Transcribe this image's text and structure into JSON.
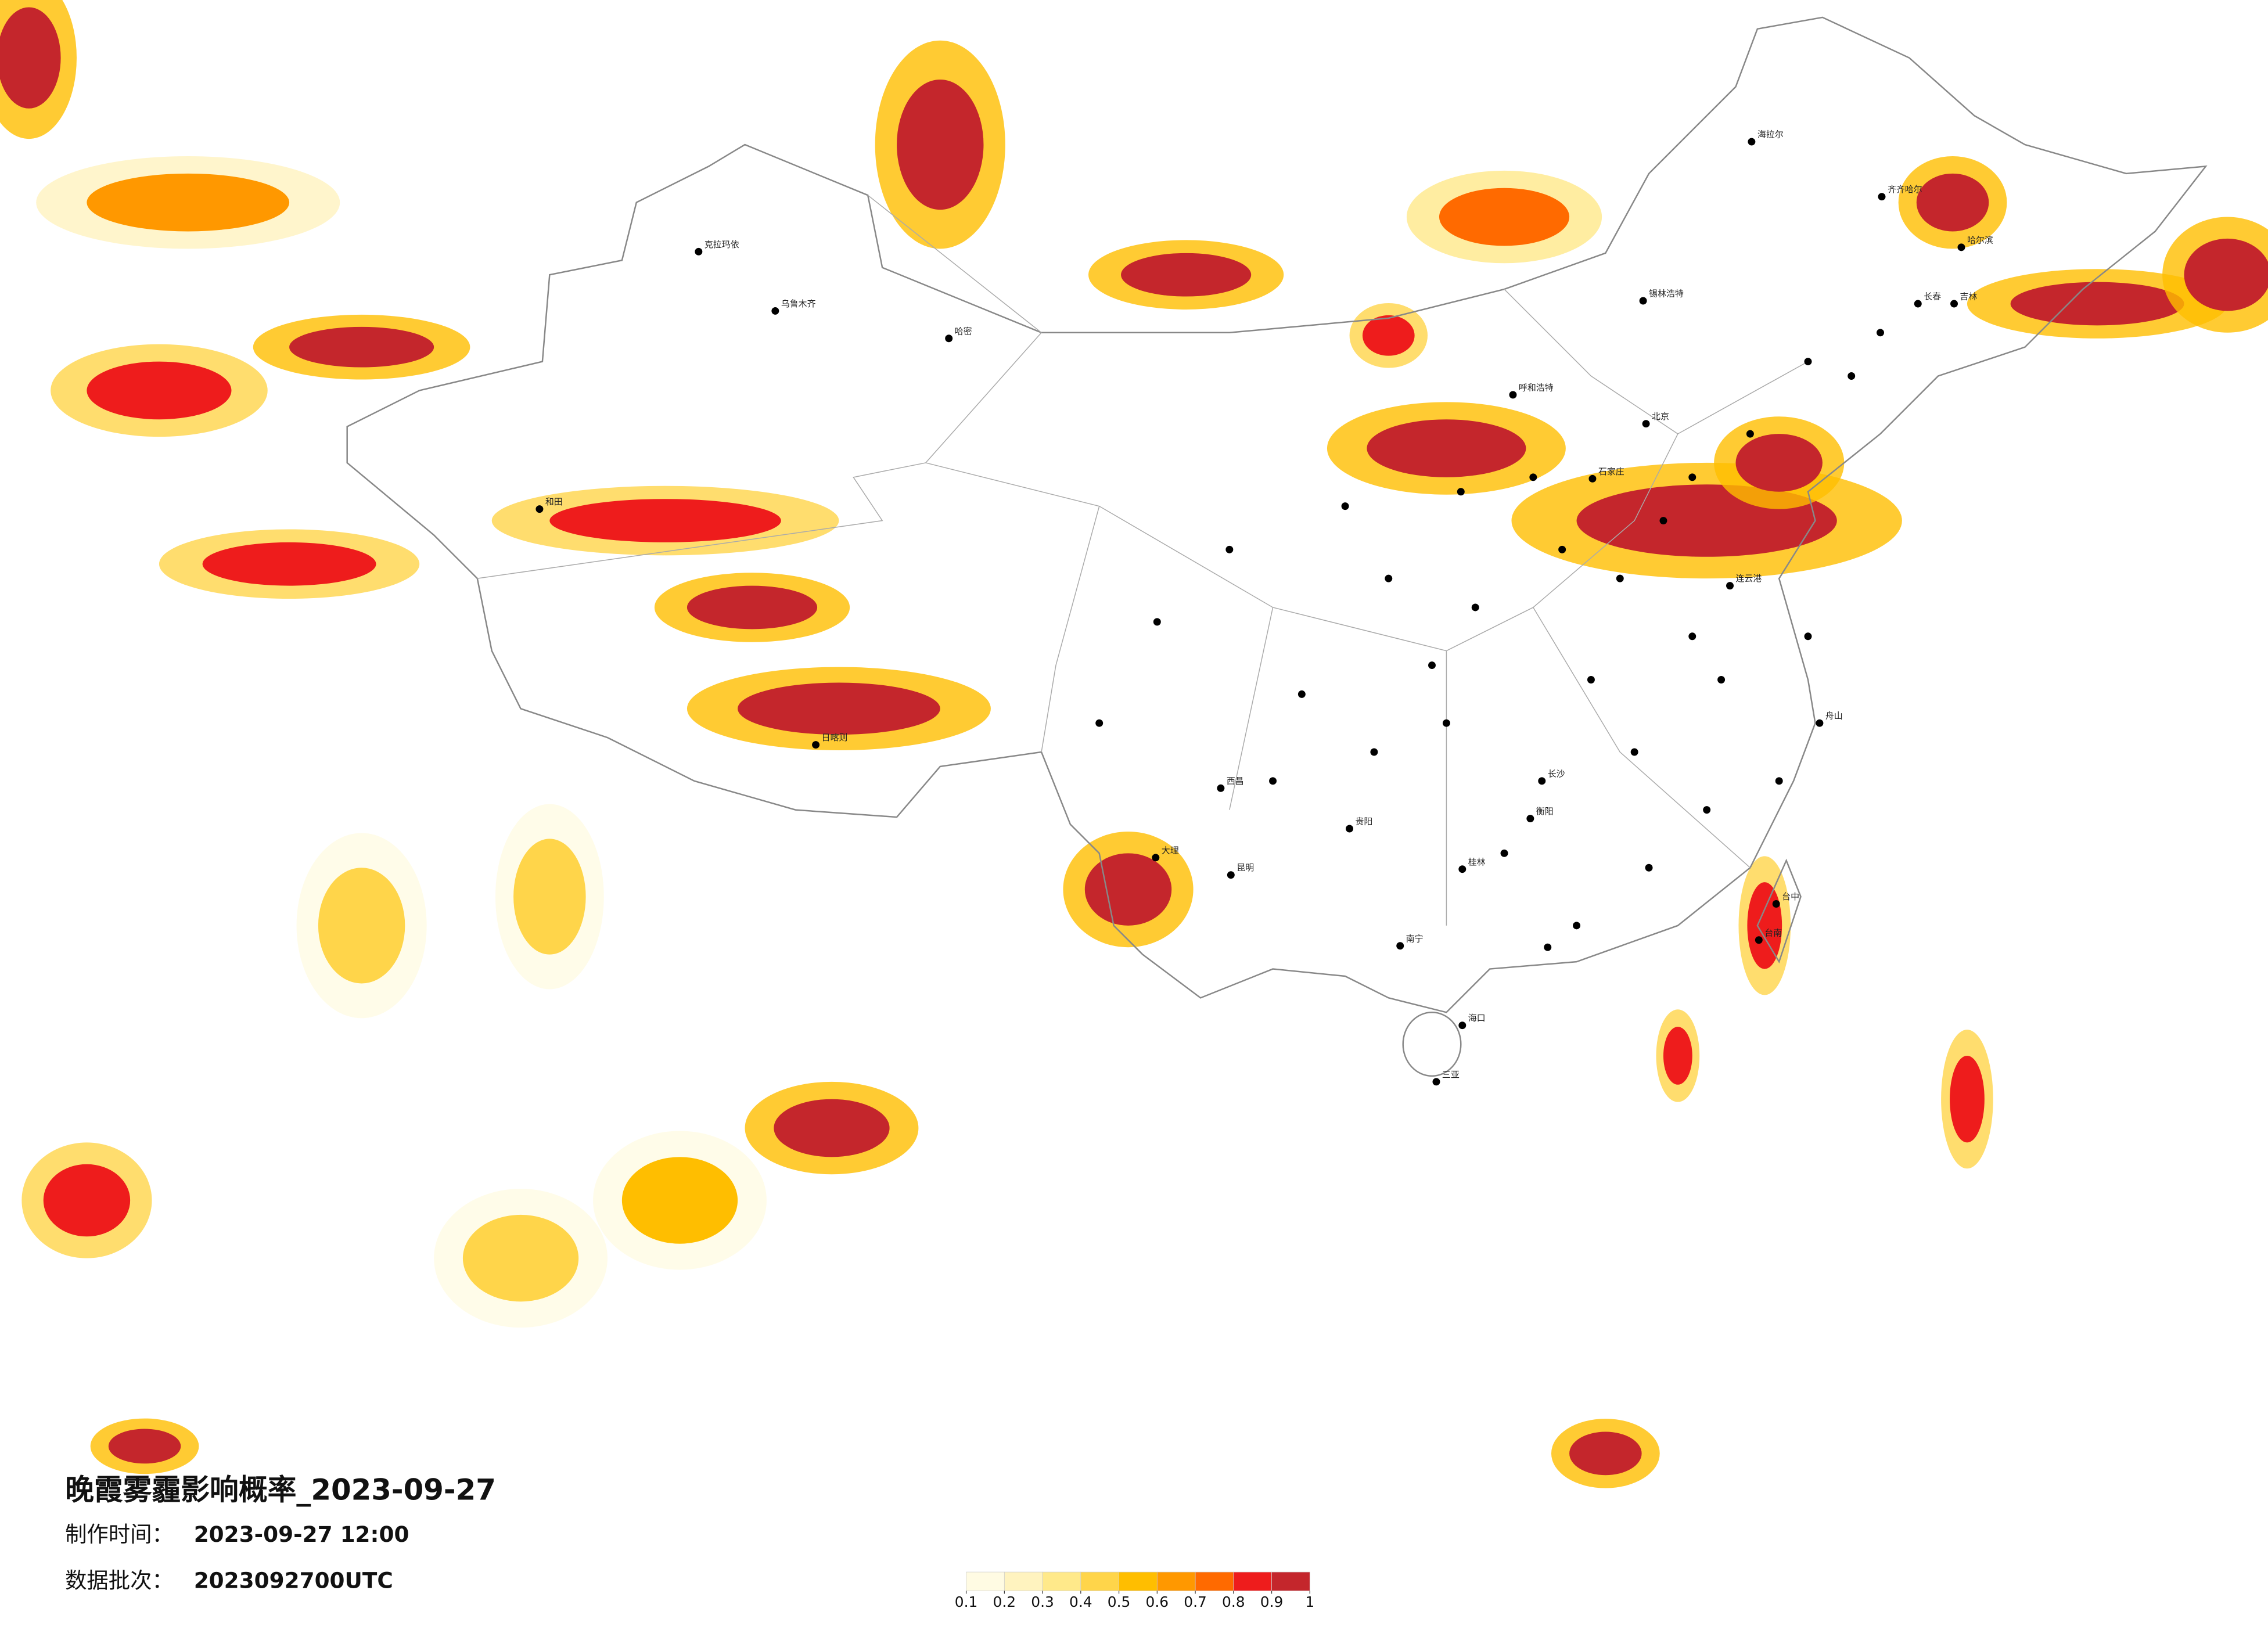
{
  "header": {
    "title": "晚霞雾霾影响概率_2023-09-27",
    "made_label": "制作时间：",
    "made_value": "2023-09-27 12:00",
    "batch_label": "数据批次：",
    "batch_value": "2023092700UTC"
  },
  "legend": {
    "ticks": [
      0.1,
      0.2,
      0.3,
      0.4,
      0.5,
      0.6,
      0.7,
      0.8,
      0.9,
      1
    ],
    "colors": [
      "#fffbe3",
      "#fff3bf",
      "#ffe98a",
      "#ffd54a",
      "#ffbe00",
      "#ff9800",
      "#ff6a00",
      "#ee1c1c",
      "#c4262c"
    ]
  },
  "map": {
    "cities": [
      "克拉玛依",
      "乌鲁木齐",
      "哈密",
      "和田",
      "日喀则",
      "呼和浩特",
      "北京",
      "石家庄",
      "连云港",
      "舟山",
      "长沙",
      "南宁",
      "昆明",
      "贵阳",
      "海口",
      "三亚",
      "哈尔滨",
      "长春",
      "吉林",
      "台中",
      "台南",
      "西昌",
      "大理",
      "桂林",
      "衡阳",
      "海拉尔",
      "齐齐哈尔",
      "锡林浩特"
    ]
  }
}
